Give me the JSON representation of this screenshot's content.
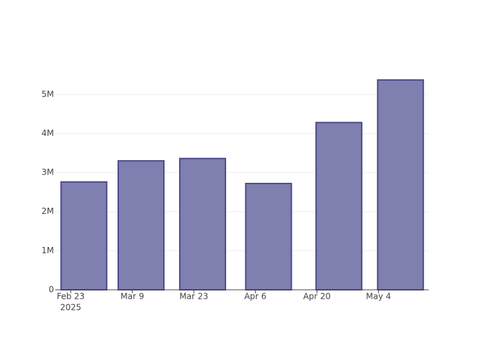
{
  "chart_data": {
    "type": "bar",
    "x": [
      "2025-02-26",
      "2025-03-11",
      "2025-03-25",
      "2025-04-09",
      "2025-04-25",
      "2025-05-09"
    ],
    "values": [
      2760000,
      3300000,
      3360000,
      2720000,
      4280000,
      5370000
    ],
    "color": "#7f7fb0",
    "line_color": "#4a4a8a",
    "xlim": [
      "2025-02-19T12:00",
      "2025-05-15T10:00"
    ],
    "xticks": [
      {
        "value": "2025-02-23",
        "label": "Feb 23"
      },
      {
        "value": "2025-03-09",
        "label": "Mar 9"
      },
      {
        "value": "2025-03-23",
        "label": "Mar 23"
      },
      {
        "value": "2025-04-06",
        "label": "Apr 6"
      },
      {
        "value": "2025-04-20",
        "label": "Apr 20"
      },
      {
        "value": "2025-05-04",
        "label": "May 4"
      }
    ],
    "xtick_year": "2025",
    "ylim": [
      0,
      5650000
    ],
    "yticks": [
      0,
      {
        "value": 1000000,
        "label": "1M"
      },
      {
        "value": 2000000,
        "label": "2M"
      },
      {
        "value": 3000000,
        "label": "3M"
      },
      {
        "value": 4000000,
        "label": "4M"
      },
      {
        "value": 5000000,
        "label": "5M"
      }
    ],
    "grid": true
  }
}
